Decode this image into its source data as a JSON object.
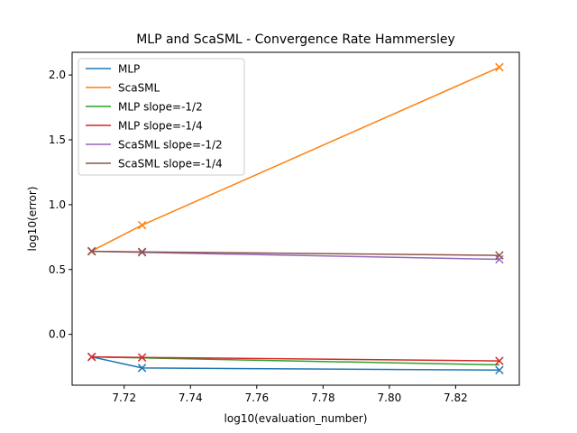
{
  "chart_data": {
    "type": "line",
    "title": "MLP and ScaSML - Convergence Rate Hammersley",
    "xlabel": "log10(evaluation_number)",
    "ylabel": "log10(error)",
    "xlim": [
      7.7043,
      7.8392
    ],
    "ylim": [
      -0.3921,
      2.1749
    ],
    "xticks": [
      7.72,
      7.74,
      7.76,
      7.78,
      7.8,
      7.82
    ],
    "xtick_labels": [
      "7.72",
      "7.74",
      "7.76",
      "7.78",
      "7.80",
      "7.82"
    ],
    "yticks": [
      0.0,
      0.5,
      1.0,
      1.5,
      2.0
    ],
    "ytick_labels": [
      "0.0",
      "0.5",
      "1.0",
      "1.5",
      "2.0"
    ],
    "grid": false,
    "legend_position": "top-left",
    "series": [
      {
        "name": "MLP",
        "color": "#1f77b4",
        "marker": "x",
        "x": [
          7.7102,
          7.7254,
          7.8332
        ],
        "y": [
          -0.174,
          -0.259,
          -0.276
        ]
      },
      {
        "name": "ScaSML",
        "color": "#ff7f0e",
        "marker": "x",
        "x": [
          7.7102,
          7.7254,
          7.8332
        ],
        "y": [
          0.643,
          0.842,
          2.06
        ]
      },
      {
        "name": "MLP slope=-1/2",
        "color": "#2ca02c",
        "marker": "",
        "x": [
          7.7102,
          7.7254,
          7.8332
        ],
        "y": [
          -0.174,
          -0.182,
          -0.236
        ]
      },
      {
        "name": "MLP slope=-1/4",
        "color": "#d62728",
        "marker": "x",
        "x": [
          7.7102,
          7.7254,
          7.8332
        ],
        "y": [
          -0.174,
          -0.178,
          -0.205
        ]
      },
      {
        "name": "ScaSML slope=-1/2",
        "color": "#9467bd",
        "marker": "x",
        "x": [
          7.7102,
          7.7254,
          7.8332
        ],
        "y": [
          0.64,
          0.632,
          0.578
        ]
      },
      {
        "name": "ScaSML slope=-1/4",
        "color": "#8c564b",
        "marker": "x",
        "x": [
          7.7102,
          7.7254,
          7.8332
        ],
        "y": [
          0.64,
          0.636,
          0.609
        ]
      }
    ]
  }
}
